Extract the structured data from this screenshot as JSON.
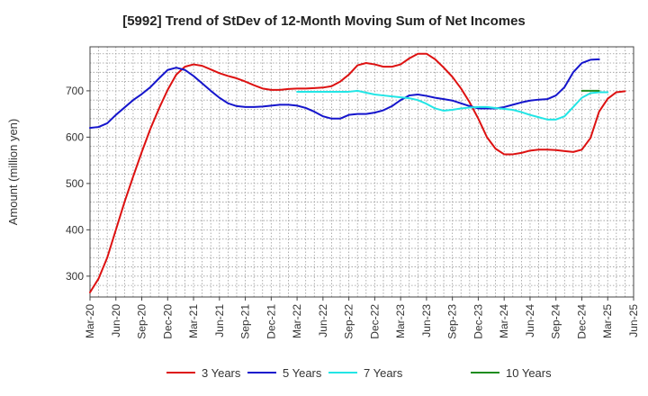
{
  "chart_data": {
    "type": "line",
    "title": "[5992]  Trend of StDev of 12-Month Moving Sum of Net Incomes",
    "ylabel": "Amount (million yen)",
    "xlabel": "",
    "ylim": [
      255,
      795
    ],
    "y_ticks": [
      300,
      400,
      500,
      600,
      700
    ],
    "x_start": "2020-03",
    "x_end": "2025-06",
    "x_tick_labels": [
      "Mar-20",
      "Jun-20",
      "Sep-20",
      "Dec-20",
      "Mar-21",
      "Jun-21",
      "Sep-21",
      "Dec-21",
      "Mar-22",
      "Jun-22",
      "Sep-22",
      "Dec-22",
      "Mar-23",
      "Jun-23",
      "Sep-23",
      "Dec-23",
      "Mar-24",
      "Jun-24",
      "Sep-24",
      "Dec-24",
      "Mar-25",
      "Jun-25"
    ],
    "grid": true,
    "legend_position": "bottom",
    "series": [
      {
        "name": "3 Years",
        "color": "#dd1111",
        "start": "2020-03",
        "values": [
          265,
          295,
          340,
          400,
          460,
          515,
          568,
          618,
          662,
          702,
          735,
          752,
          757,
          754,
          746,
          738,
          732,
          727,
          720,
          712,
          705,
          702,
          702,
          704,
          705,
          705,
          706,
          707,
          710,
          720,
          735,
          755,
          760,
          757,
          752,
          752,
          757,
          770,
          780,
          780,
          768,
          750,
          730,
          705,
          675,
          640,
          600,
          575,
          563,
          563,
          566,
          571,
          573,
          573,
          572,
          570,
          568,
          573,
          598,
          655,
          683,
          697,
          699
        ]
      },
      {
        "name": "5 Years",
        "color": "#1515cc",
        "start": "2020-03",
        "values": [
          620,
          622,
          630,
          648,
          664,
          680,
          693,
          708,
          727,
          745,
          750,
          745,
          732,
          716,
          700,
          685,
          673,
          667,
          665,
          665,
          666,
          668,
          670,
          670,
          668,
          663,
          655,
          645,
          640,
          640,
          648,
          650,
          650,
          653,
          658,
          667,
          680,
          690,
          692,
          689,
          685,
          682,
          679,
          673,
          667,
          662,
          662,
          662,
          665,
          670,
          675,
          679,
          681,
          682,
          690,
          708,
          740,
          760,
          767,
          768
        ]
      },
      {
        "name": "7 Years",
        "color": "#22e5e5",
        "start": "2022-03",
        "values": [
          698,
          698,
          698,
          698,
          698,
          698,
          698,
          700,
          696,
          692,
          690,
          688,
          686,
          684,
          680,
          672,
          662,
          657,
          659,
          662,
          664,
          665,
          665,
          663,
          661,
          659,
          654,
          648,
          643,
          638,
          638,
          645,
          665,
          685,
          695,
          697,
          697
        ]
      },
      {
        "name": "10 Years",
        "color": "#1e8c1e",
        "start": "2024-12",
        "values": [
          700,
          700,
          700
        ]
      }
    ]
  }
}
